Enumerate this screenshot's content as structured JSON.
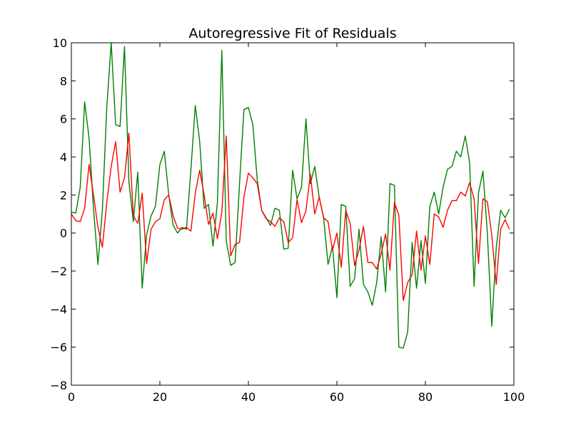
{
  "chart_data": {
    "type": "line",
    "title": "Autoregressive Fit of Residuals",
    "xlabel": "",
    "ylabel": "",
    "xlim": [
      0,
      100
    ],
    "ylim": [
      -8,
      10
    ],
    "x_ticks": [
      0,
      20,
      40,
      60,
      80,
      100
    ],
    "y_ticks": [
      -8,
      -6,
      -4,
      -2,
      0,
      2,
      4,
      6,
      8,
      10
    ],
    "grid": false,
    "series": [
      {
        "color": "#008000",
        "x": [
          0,
          1,
          2,
          3,
          4,
          5,
          6,
          7,
          8,
          9,
          10,
          11,
          12,
          13,
          14,
          15,
          16,
          17,
          18,
          19,
          20,
          21,
          22,
          23,
          24,
          25,
          26,
          27,
          28,
          29,
          30,
          31,
          32,
          33,
          34,
          35,
          36,
          37,
          38,
          39,
          40,
          41,
          42,
          43,
          44,
          45,
          46,
          47,
          48,
          49,
          50,
          51,
          52,
          53,
          54,
          55,
          56,
          57,
          58,
          59,
          60,
          61,
          62,
          63,
          64,
          65,
          66,
          67,
          68,
          69,
          70,
          71,
          72,
          73,
          74,
          75,
          76,
          77,
          78,
          79,
          80,
          81,
          82,
          83,
          84,
          85,
          86,
          87,
          88,
          89,
          90,
          91,
          92,
          93,
          94,
          95,
          96,
          97,
          98,
          99
        ],
        "values": [
          1.1,
          1.05,
          2.4,
          6.9,
          5.0,
          1.3,
          -1.65,
          1.2,
          6.6,
          10.0,
          5.7,
          5.6,
          9.8,
          2.7,
          0.6,
          3.2,
          -2.9,
          -0.1,
          0.9,
          1.4,
          3.6,
          4.3,
          2.0,
          0.4,
          0.0,
          0.3,
          0.2,
          3.3,
          6.7,
          4.8,
          1.3,
          1.5,
          -0.7,
          1.6,
          9.6,
          -0.4,
          -1.7,
          -1.55,
          2.6,
          6.5,
          6.6,
          5.7,
          2.8,
          1.2,
          0.8,
          0.4,
          1.3,
          1.2,
          -0.85,
          -0.8,
          3.3,
          1.8,
          2.4,
          6.0,
          2.6,
          3.5,
          1.9,
          0.8,
          -1.65,
          -0.7,
          -3.4,
          1.5,
          1.4,
          -2.8,
          -2.4,
          0.2,
          -2.7,
          -3.1,
          -3.8,
          -2.6,
          -0.2,
          -3.1,
          2.6,
          2.5,
          -6.0,
          -6.05,
          -5.2,
          -0.5,
          -2.9,
          -0.4,
          -2.65,
          1.4,
          2.15,
          1.0,
          2.4,
          3.35,
          3.5,
          4.3,
          4.0,
          5.1,
          3.7,
          -2.8,
          2.1,
          3.25,
          0.0,
          -4.9,
          -0.8,
          1.2,
          0.8,
          1.25
        ]
      },
      {
        "color": "#ff0000",
        "x": [
          0,
          1,
          2,
          3,
          4,
          5,
          6,
          7,
          8,
          9,
          10,
          11,
          12,
          13,
          14,
          15,
          16,
          17,
          18,
          19,
          20,
          21,
          22,
          23,
          24,
          25,
          26,
          27,
          28,
          29,
          30,
          31,
          32,
          33,
          34,
          35,
          36,
          37,
          38,
          39,
          40,
          41,
          42,
          43,
          44,
          45,
          46,
          47,
          48,
          49,
          50,
          51,
          52,
          53,
          54,
          55,
          56,
          57,
          58,
          59,
          60,
          61,
          62,
          63,
          64,
          65,
          66,
          67,
          68,
          69,
          70,
          71,
          72,
          73,
          74,
          75,
          76,
          77,
          78,
          79,
          80,
          81,
          82,
          83,
          84,
          85,
          86,
          87,
          88,
          89,
          90,
          91,
          92,
          93,
          94,
          95,
          96,
          97,
          98,
          99
        ],
        "values": [
          1.0,
          0.65,
          0.6,
          1.3,
          3.6,
          2.0,
          0.3,
          -0.75,
          1.6,
          3.5,
          4.8,
          2.15,
          2.9,
          5.25,
          0.9,
          0.5,
          2.1,
          -1.6,
          0.2,
          0.6,
          0.75,
          1.75,
          2.0,
          0.9,
          0.25,
          0.2,
          0.3,
          0.1,
          2.1,
          3.3,
          2.0,
          0.45,
          1.05,
          -0.3,
          1.1,
          5.1,
          -1.2,
          -0.6,
          -0.5,
          1.9,
          3.15,
          2.9,
          2.6,
          1.2,
          0.75,
          0.6,
          0.35,
          0.8,
          0.6,
          -0.5,
          -0.25,
          1.75,
          0.55,
          1.15,
          3.1,
          1.0,
          1.9,
          0.8,
          0.6,
          -0.9,
          0.0,
          -1.8,
          1.2,
          0.5,
          -1.7,
          -0.9,
          0.35,
          -1.55,
          -1.55,
          -1.9,
          -1.1,
          -0.05,
          -1.95,
          1.6,
          0.95,
          -3.55,
          -2.6,
          -2.2,
          0.1,
          -1.95,
          -0.15,
          -1.65,
          1.0,
          0.85,
          0.3,
          1.2,
          1.7,
          1.7,
          2.15,
          1.95,
          2.65,
          1.8,
          -1.6,
          1.8,
          1.65,
          -0.1,
          -2.7,
          0.2,
          0.7,
          0.2
        ]
      }
    ]
  }
}
